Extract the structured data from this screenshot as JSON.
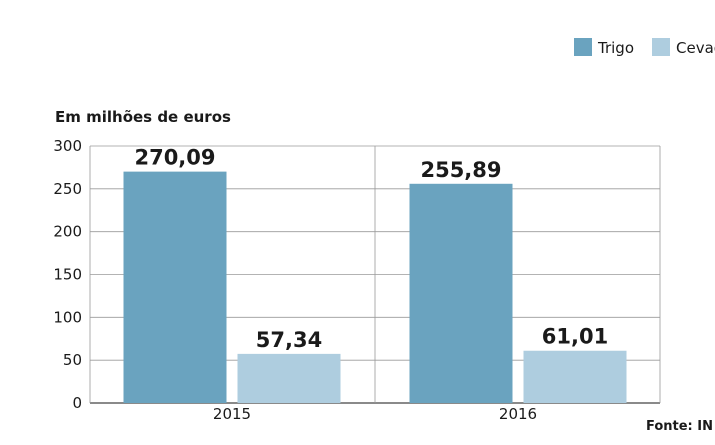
{
  "chart_data": {
    "type": "bar",
    "ylabel": "Em milhões de euros",
    "categories": [
      "2015",
      "2016"
    ],
    "series": [
      {
        "name": "Trigo",
        "color": "#6aa3bf",
        "values": [
          270.09,
          255.89
        ],
        "labels": [
          "270,09",
          "255,89"
        ]
      },
      {
        "name": "Cevad",
        "color": "#aecddf",
        "values": [
          57.34,
          61.01
        ],
        "labels": [
          "57,34",
          "61,01"
        ]
      }
    ],
    "ylim": [
      0,
      300
    ],
    "yticks": [
      0,
      50,
      100,
      150,
      200,
      250,
      300
    ],
    "grid": true,
    "legend_position": "top-right",
    "source": "Fonte: IN"
  }
}
